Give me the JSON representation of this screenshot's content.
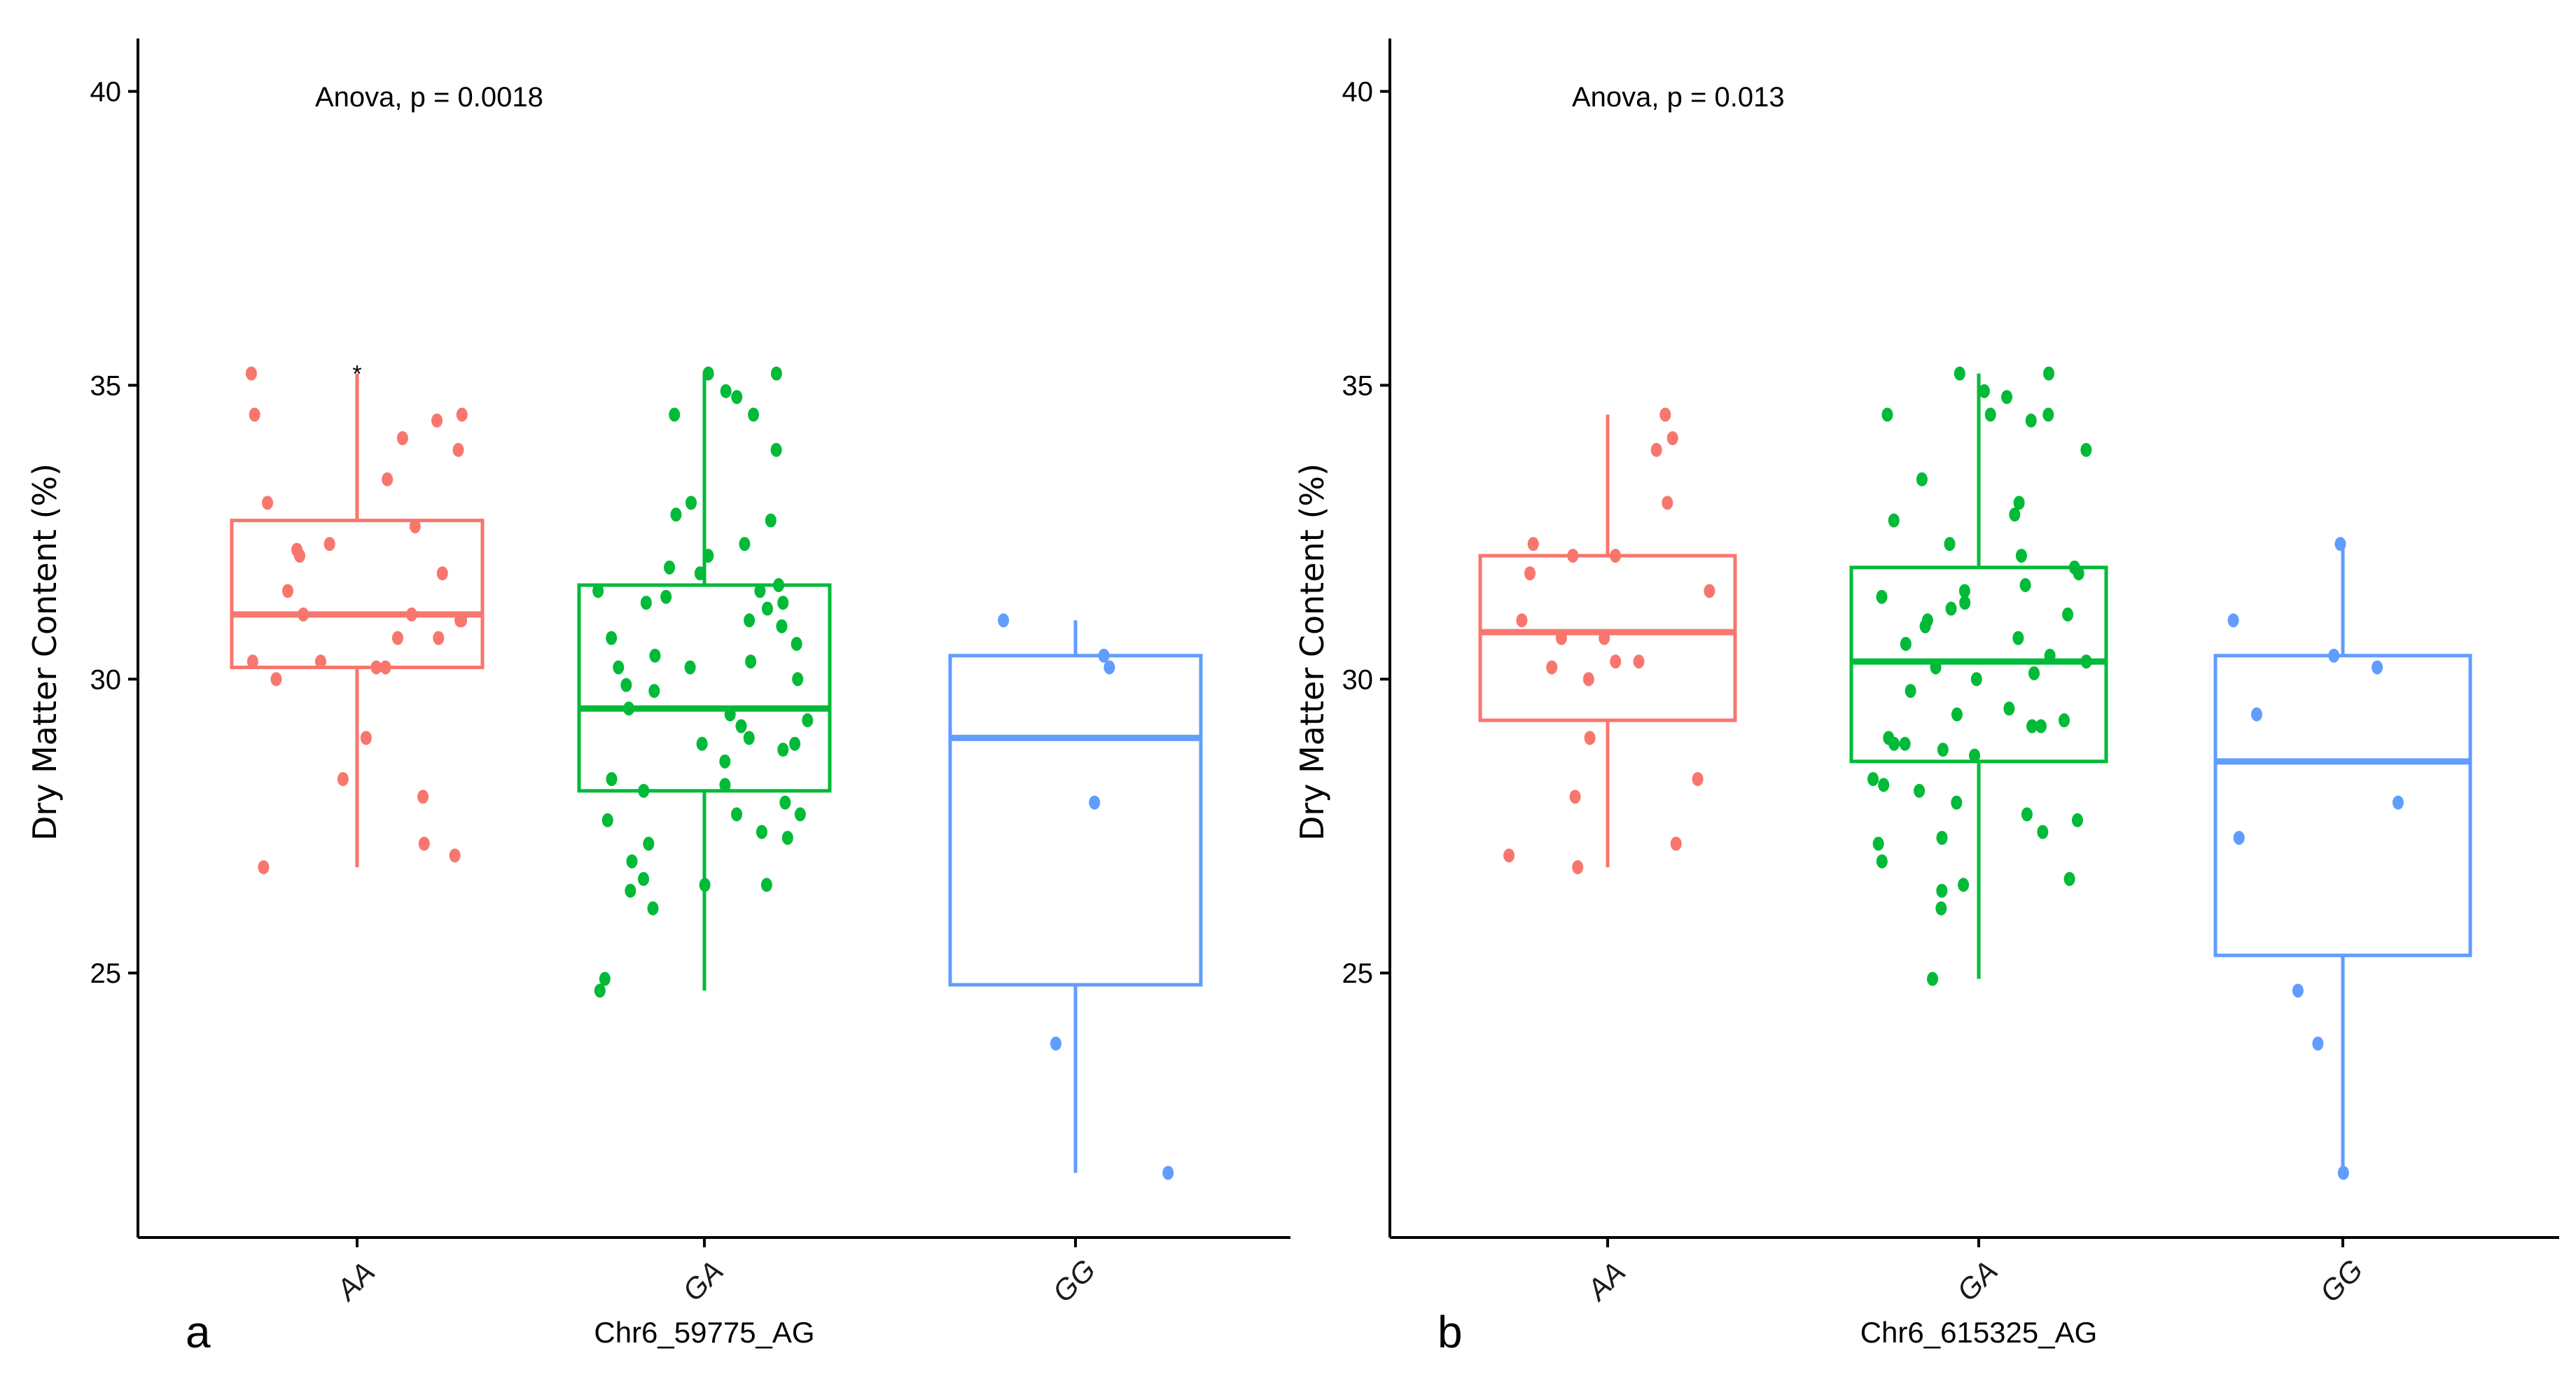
{
  "chart_data": [
    {
      "type": "boxplot",
      "panel_label": "a",
      "annotation": "Anova, p = 0.0018",
      "xlabel": "Chr6_59775_AG",
      "ylabel": "Dry Matter Content (%)",
      "ylim": [
        20.5,
        40.9
      ],
      "yticks": [
        "25",
        "30",
        "35",
        "40"
      ],
      "categories": [
        "AA",
        "GA",
        "GG"
      ],
      "colors": [
        "#F8766D",
        "#00BA38",
        "#619CFF"
      ],
      "boxes": [
        {
          "category": "AA",
          "whisker_low": 26.8,
          "q1": 30.2,
          "median": 31.1,
          "q3": 32.7,
          "whisker_high": 35.2,
          "outliers": [
            35.2
          ]
        },
        {
          "category": "GA",
          "whisker_low": 24.7,
          "q1": 28.1,
          "median": 29.5,
          "q3": 31.6,
          "whisker_high": 35.2,
          "outliers": []
        },
        {
          "category": "GG",
          "whisker_low": 21.6,
          "q1": 24.8,
          "median": 29.0,
          "q3": 30.4,
          "whisker_high": 31.0,
          "outliers": []
        }
      ],
      "points": [
        {
          "category": "AA",
          "values": [
            35.2,
            34.5,
            34.5,
            34.4,
            34.1,
            33.9,
            33.4,
            33.0,
            32.6,
            32.3,
            32.2,
            32.1,
            31.8,
            31.5,
            31.1,
            31.1,
            31.0,
            31.0,
            30.7,
            30.7,
            30.3,
            30.3,
            30.2,
            30.2,
            30.0,
            29.0,
            28.3,
            28.0,
            27.2,
            27.0,
            26.8
          ]
        },
        {
          "category": "GA",
          "values": [
            35.2,
            35.2,
            34.9,
            34.8,
            34.5,
            34.5,
            33.9,
            33.0,
            32.8,
            32.7,
            32.3,
            32.1,
            31.9,
            31.8,
            31.6,
            31.5,
            31.5,
            31.4,
            31.3,
            31.3,
            31.2,
            31.0,
            30.9,
            30.7,
            30.6,
            30.4,
            30.3,
            30.2,
            30.2,
            30.0,
            29.9,
            29.8,
            29.5,
            29.4,
            29.3,
            29.2,
            29.0,
            28.9,
            28.9,
            28.8,
            28.6,
            28.3,
            28.2,
            28.1,
            27.9,
            27.7,
            27.7,
            27.6,
            27.4,
            27.3,
            27.2,
            26.9,
            26.6,
            26.5,
            26.5,
            26.4,
            26.1,
            24.9,
            24.7
          ]
        },
        {
          "category": "GG",
          "values": [
            31.0,
            30.4,
            30.2,
            27.9,
            23.8,
            21.6
          ]
        }
      ]
    },
    {
      "type": "boxplot",
      "panel_label": "b",
      "annotation": "Anova, p = 0.013",
      "xlabel": "Chr6_615325_AG",
      "ylabel": "Dry Matter Content (%)",
      "ylim": [
        20.5,
        40.9
      ],
      "yticks": [
        "25",
        "30",
        "35",
        "40"
      ],
      "categories": [
        "AA",
        "GA",
        "GG"
      ],
      "colors": [
        "#F8766D",
        "#00BA38",
        "#619CFF"
      ],
      "boxes": [
        {
          "category": "AA",
          "whisker_low": 26.8,
          "q1": 29.3,
          "median": 30.8,
          "q3": 32.1,
          "whisker_high": 34.5,
          "outliers": []
        },
        {
          "category": "GA",
          "whisker_low": 24.9,
          "q1": 28.6,
          "median": 30.3,
          "q3": 31.9,
          "whisker_high": 35.2,
          "outliers": []
        },
        {
          "category": "GG",
          "whisker_low": 21.6,
          "q1": 25.3,
          "median": 28.6,
          "q3": 30.4,
          "whisker_high": 32.3,
          "outliers": []
        }
      ],
      "points": [
        {
          "category": "AA",
          "values": [
            34.5,
            34.1,
            33.9,
            33.0,
            32.3,
            32.1,
            32.1,
            31.8,
            31.5,
            31.0,
            30.7,
            30.7,
            30.3,
            30.3,
            30.2,
            30.0,
            29.0,
            28.3,
            28.0,
            27.2,
            27.0,
            26.8
          ]
        },
        {
          "category": "GA",
          "values": [
            35.2,
            35.2,
            34.9,
            34.8,
            34.5,
            34.5,
            34.5,
            34.4,
            33.9,
            33.4,
            33.0,
            32.8,
            32.7,
            32.3,
            32.1,
            31.9,
            31.8,
            31.6,
            31.5,
            31.4,
            31.3,
            31.2,
            31.1,
            31.0,
            30.9,
            30.7,
            30.6,
            30.4,
            30.3,
            30.2,
            30.1,
            30.0,
            29.8,
            29.5,
            29.4,
            29.3,
            29.2,
            29.2,
            29.0,
            28.9,
            28.9,
            28.8,
            28.7,
            28.3,
            28.2,
            28.1,
            27.9,
            27.7,
            27.6,
            27.4,
            27.3,
            27.2,
            26.9,
            26.6,
            26.5,
            26.4,
            26.1,
            24.9
          ]
        },
        {
          "category": "GG",
          "values": [
            32.3,
            31.0,
            30.4,
            30.2,
            29.4,
            27.9,
            27.3,
            24.7,
            23.8,
            21.6
          ]
        }
      ]
    }
  ]
}
